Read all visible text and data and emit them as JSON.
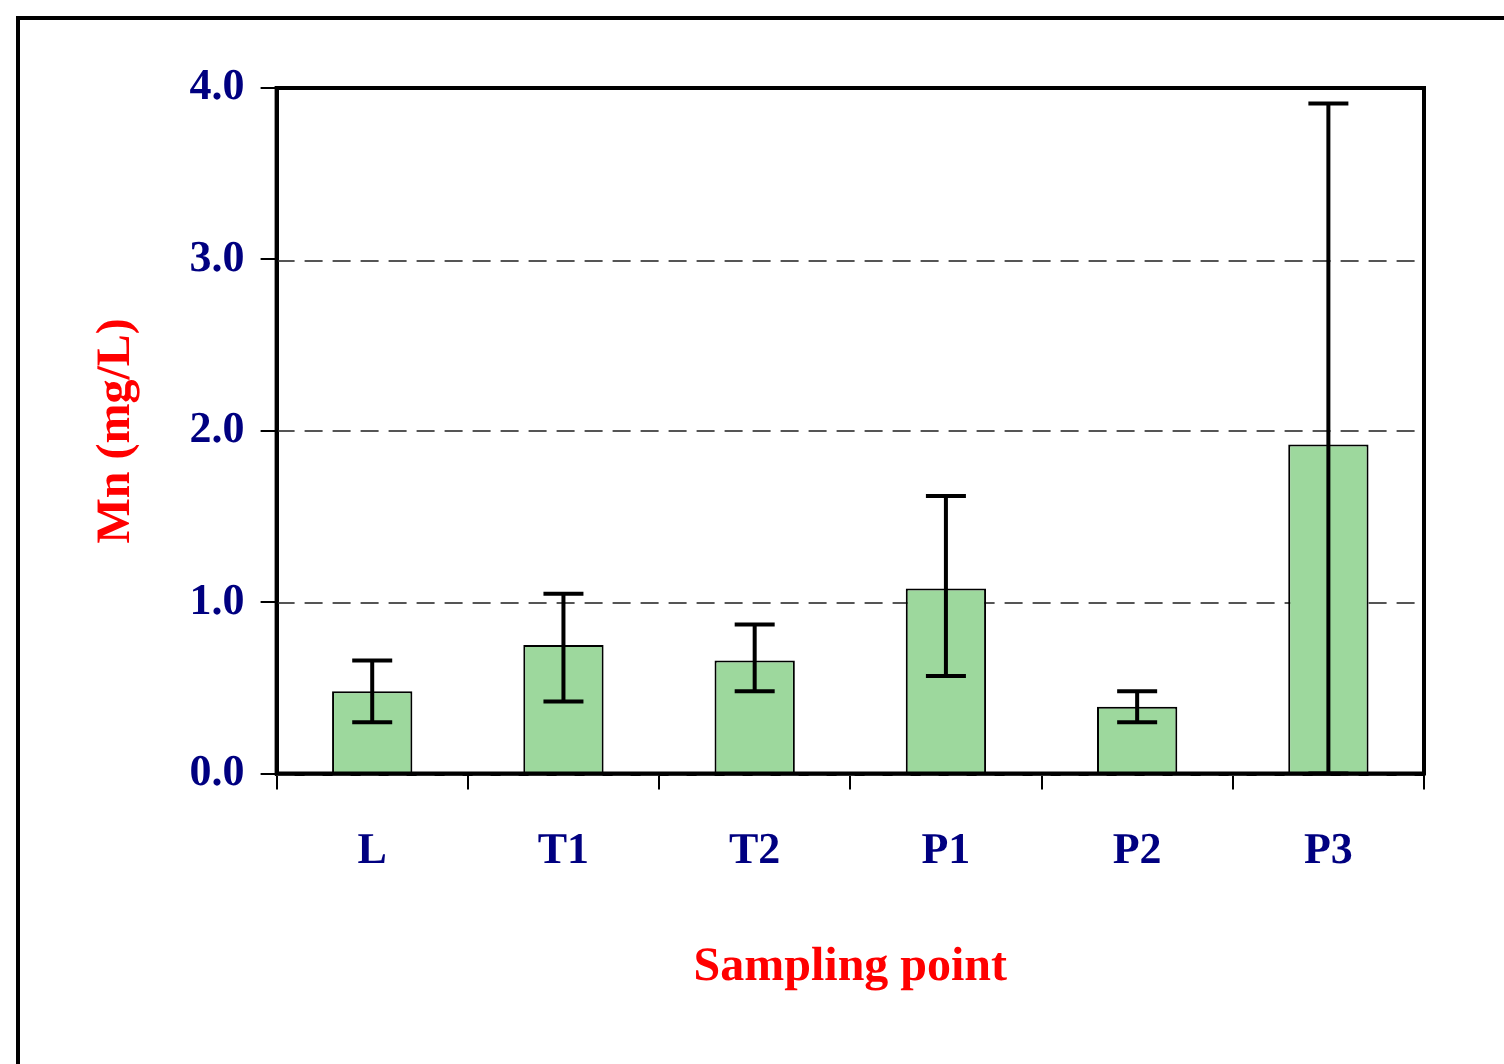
{
  "chart_data": {
    "type": "bar",
    "xlabel": "Sampling point",
    "ylabel": "Mn (mg/L)",
    "categories": [
      "L",
      "T1",
      "T2",
      "P1",
      "P2",
      "P3"
    ],
    "series": [
      {
        "color": "#9dd89d",
        "values": [
          0.48,
          0.75,
          0.66,
          1.08,
          0.39,
          1.92
        ],
        "errors": [
          [
            0.3,
            0.66
          ],
          [
            0.42,
            1.05
          ],
          [
            0.48,
            0.87
          ],
          [
            0.57,
            1.62
          ],
          [
            0.3,
            0.48
          ],
          [
            0,
            3.91
          ]
        ]
      }
    ],
    "ylim": [
      0,
      4
    ],
    "yticks": [
      {
        "value": 0,
        "label": "0.0"
      },
      {
        "value": 1,
        "label": "1.0"
      },
      {
        "value": 2,
        "label": "2.0"
      },
      {
        "value": 3,
        "label": "3.0"
      },
      {
        "value": 4,
        "label": "4.0"
      }
    ],
    "grid": "y",
    "legend": false
  }
}
